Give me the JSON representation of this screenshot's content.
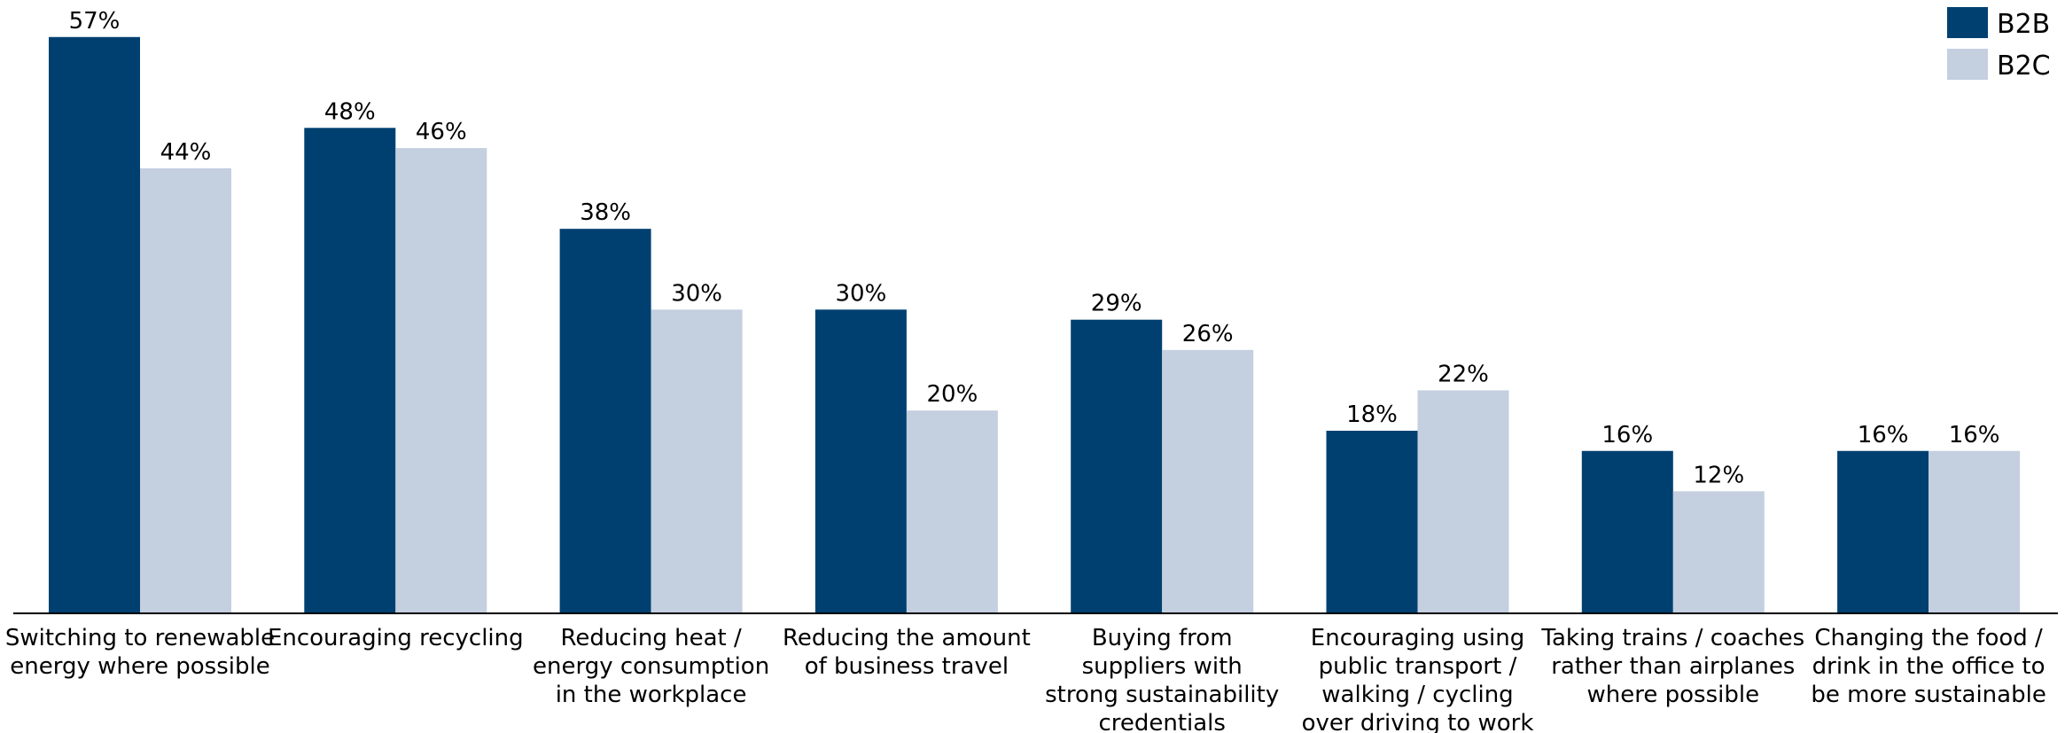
{
  "chart_data": {
    "type": "bar",
    "title": "",
    "xlabel": "",
    "ylabel": "",
    "ylim": [
      0,
      60
    ],
    "grid": false,
    "legend_position": "top-right",
    "categories": [
      [
        "Switching to renewable",
        "energy where possible"
      ],
      [
        "Encouraging recycling"
      ],
      [
        "Reducing heat /",
        "energy consumption",
        "in the workplace"
      ],
      [
        "Reducing the amount",
        "of business travel"
      ],
      [
        "Buying from",
        "suppliers with",
        "strong sustainability",
        "credentials"
      ],
      [
        "Encouraging using",
        "public transport /",
        "walking / cycling",
        "over driving to work"
      ],
      [
        "Taking trains / coaches",
        "rather than airplanes",
        "where possible"
      ],
      [
        "Changing the food /",
        "drink in the office to",
        "be more sustainable"
      ]
    ],
    "series": [
      {
        "name": "B2B",
        "color": "#004071",
        "values": [
          57,
          48,
          38,
          30,
          29,
          18,
          16,
          16
        ],
        "labels": [
          "57%",
          "48%",
          "38%",
          "30%",
          "29%",
          "18%",
          "16%",
          "16%"
        ]
      },
      {
        "name": "B2C",
        "color": "#c4cfe0",
        "values": [
          44,
          46,
          30,
          20,
          26,
          22,
          12,
          16
        ],
        "labels": [
          "44%",
          "46%",
          "30%",
          "20%",
          "26%",
          "22%",
          "12%",
          "16%"
        ]
      }
    ]
  }
}
